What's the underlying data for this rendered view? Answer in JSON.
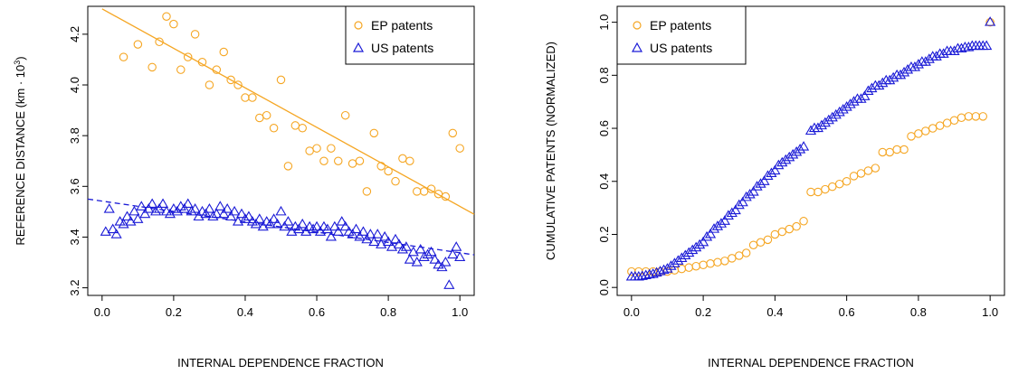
{
  "chart_data": [
    {
      "type": "scatter",
      "title": "",
      "xlabel": "INTERNAL DEPENDENCE FRACTION",
      "ylabel": "REFERENCE DISTANCE (km · 10³)",
      "ylabel_main": "REFERENCE DISTANCE (km · 10",
      "ylabel_exp": "3",
      "ylabel_close": ")",
      "xlim": [
        -0.04,
        1.04
      ],
      "ylim": [
        3.17,
        4.31
      ],
      "xticks": [
        0.0,
        0.2,
        0.4,
        0.6,
        0.8,
        1.0
      ],
      "xtick_labels": [
        "0.0",
        "0.2",
        "0.4",
        "0.6",
        "0.8",
        "1.0"
      ],
      "yticks": [
        3.2,
        3.4,
        3.6,
        3.8,
        4.0,
        4.2
      ],
      "ytick_labels": [
        "3.2",
        "3.4",
        "3.6",
        "3.8",
        "4.0",
        "4.2"
      ],
      "legend_position": "top-right",
      "series": [
        {
          "name": "EP patents",
          "color": "#f5a623",
          "marker": "circle",
          "x": [
            0.06,
            0.1,
            0.14,
            0.16,
            0.18,
            0.2,
            0.22,
            0.24,
            0.26,
            0.28,
            0.3,
            0.32,
            0.34,
            0.36,
            0.38,
            0.4,
            0.42,
            0.44,
            0.46,
            0.48,
            0.5,
            0.52,
            0.54,
            0.56,
            0.58,
            0.6,
            0.62,
            0.64,
            0.66,
            0.68,
            0.7,
            0.72,
            0.74,
            0.76,
            0.78,
            0.8,
            0.82,
            0.84,
            0.86,
            0.88,
            0.9,
            0.92,
            0.94,
            0.96,
            0.98,
            1.0
          ],
          "y": [
            4.11,
            4.16,
            4.07,
            4.17,
            4.27,
            4.24,
            4.06,
            4.11,
            4.2,
            4.09,
            4.0,
            4.06,
            4.13,
            4.02,
            4.0,
            3.95,
            3.95,
            3.87,
            3.88,
            3.83,
            4.02,
            3.68,
            3.84,
            3.83,
            3.74,
            3.75,
            3.7,
            3.75,
            3.7,
            3.88,
            3.69,
            3.7,
            3.58,
            3.81,
            3.68,
            3.66,
            3.62,
            3.71,
            3.7,
            3.58,
            3.58,
            3.59,
            3.57,
            3.56,
            3.81,
            3.75
          ]
        },
        {
          "name": "US patents",
          "color": "#1a1ad6",
          "marker": "triangle",
          "x": [
            0.01,
            0.02,
            0.03,
            0.04,
            0.05,
            0.06,
            0.07,
            0.08,
            0.09,
            0.1,
            0.11,
            0.12,
            0.13,
            0.14,
            0.15,
            0.16,
            0.17,
            0.18,
            0.19,
            0.2,
            0.21,
            0.22,
            0.23,
            0.24,
            0.25,
            0.26,
            0.27,
            0.28,
            0.29,
            0.3,
            0.31,
            0.32,
            0.33,
            0.34,
            0.35,
            0.36,
            0.37,
            0.38,
            0.39,
            0.4,
            0.41,
            0.42,
            0.43,
            0.44,
            0.45,
            0.46,
            0.47,
            0.48,
            0.49,
            0.5,
            0.51,
            0.52,
            0.53,
            0.54,
            0.55,
            0.56,
            0.57,
            0.58,
            0.59,
            0.6,
            0.61,
            0.62,
            0.63,
            0.64,
            0.65,
            0.66,
            0.67,
            0.68,
            0.69,
            0.7,
            0.71,
            0.72,
            0.73,
            0.74,
            0.75,
            0.76,
            0.77,
            0.78,
            0.79,
            0.8,
            0.81,
            0.82,
            0.83,
            0.84,
            0.85,
            0.86,
            0.87,
            0.88,
            0.89,
            0.9,
            0.91,
            0.92,
            0.93,
            0.94,
            0.95,
            0.96,
            0.97,
            0.98,
            0.99,
            1.0
          ],
          "y": [
            3.42,
            3.51,
            3.43,
            3.41,
            3.46,
            3.45,
            3.48,
            3.46,
            3.5,
            3.47,
            3.52,
            3.49,
            3.51,
            3.53,
            3.5,
            3.51,
            3.53,
            3.5,
            3.49,
            3.51,
            3.5,
            3.52,
            3.51,
            3.53,
            3.5,
            3.51,
            3.48,
            3.5,
            3.49,
            3.51,
            3.48,
            3.49,
            3.52,
            3.49,
            3.51,
            3.48,
            3.5,
            3.46,
            3.49,
            3.47,
            3.48,
            3.46,
            3.45,
            3.47,
            3.44,
            3.46,
            3.45,
            3.47,
            3.45,
            3.5,
            3.44,
            3.46,
            3.42,
            3.44,
            3.43,
            3.45,
            3.42,
            3.44,
            3.43,
            3.44,
            3.42,
            3.44,
            3.43,
            3.4,
            3.44,
            3.42,
            3.46,
            3.44,
            3.42,
            3.41,
            3.43,
            3.4,
            3.42,
            3.39,
            3.41,
            3.38,
            3.41,
            3.37,
            3.4,
            3.38,
            3.36,
            3.39,
            3.37,
            3.35,
            3.36,
            3.31,
            3.34,
            3.3,
            3.35,
            3.32,
            3.33,
            3.34,
            3.31,
            3.29,
            3.28,
            3.3,
            3.21,
            3.33,
            3.36,
            3.32
          ]
        }
      ],
      "fit_lines": [
        {
          "series": "EP patents",
          "style": "solid",
          "x": [
            0.0,
            1.04
          ],
          "y": [
            4.3,
            3.49
          ]
        },
        {
          "series": "US patents",
          "style": "dashed",
          "x": [
            -0.04,
            1.04
          ],
          "y": [
            3.55,
            3.33
          ]
        }
      ]
    },
    {
      "type": "scatter",
      "title": "",
      "xlabel": "INTERNAL DEPENDENCE FRACTION",
      "ylabel": "CUMULATIVE PATENTS (NORMALIZED)",
      "xlim": [
        -0.04,
        1.04
      ],
      "ylim": [
        -0.03,
        1.06
      ],
      "xticks": [
        0.0,
        0.2,
        0.4,
        0.6,
        0.8,
        1.0
      ],
      "xtick_labels": [
        "0.0",
        "0.2",
        "0.4",
        "0.6",
        "0.8",
        "1.0"
      ],
      "yticks": [
        0.0,
        0.2,
        0.4,
        0.6,
        0.8,
        1.0
      ],
      "ytick_labels": [
        "0.0",
        "0.2",
        "0.4",
        "0.6",
        "0.8",
        "1.0"
      ],
      "legend_position": "top-left",
      "series": [
        {
          "name": "EP patents",
          "color": "#f5a623",
          "marker": "circle",
          "x": [
            0.0,
            0.02,
            0.04,
            0.06,
            0.08,
            0.1,
            0.12,
            0.14,
            0.16,
            0.18,
            0.2,
            0.22,
            0.24,
            0.26,
            0.28,
            0.3,
            0.32,
            0.34,
            0.36,
            0.38,
            0.4,
            0.42,
            0.44,
            0.46,
            0.48,
            0.5,
            0.52,
            0.54,
            0.56,
            0.58,
            0.6,
            0.62,
            0.64,
            0.66,
            0.68,
            0.7,
            0.72,
            0.74,
            0.76,
            0.78,
            0.8,
            0.82,
            0.84,
            0.86,
            0.88,
            0.9,
            0.92,
            0.94,
            0.96,
            0.98,
            1.0
          ],
          "y": [
            0.06,
            0.06,
            0.06,
            0.06,
            0.06,
            0.06,
            0.065,
            0.07,
            0.075,
            0.08,
            0.085,
            0.09,
            0.095,
            0.1,
            0.11,
            0.12,
            0.13,
            0.16,
            0.17,
            0.18,
            0.2,
            0.21,
            0.22,
            0.23,
            0.25,
            0.36,
            0.36,
            0.37,
            0.38,
            0.39,
            0.4,
            0.42,
            0.43,
            0.44,
            0.45,
            0.51,
            0.51,
            0.52,
            0.52,
            0.57,
            0.58,
            0.59,
            0.6,
            0.61,
            0.62,
            0.63,
            0.64,
            0.645,
            0.645,
            0.645,
            1.0
          ]
        },
        {
          "name": "US patents",
          "color": "#1a1ad6",
          "marker": "triangle",
          "x": [
            0.0,
            0.01,
            0.02,
            0.03,
            0.04,
            0.05,
            0.06,
            0.07,
            0.08,
            0.09,
            0.1,
            0.11,
            0.12,
            0.13,
            0.14,
            0.15,
            0.16,
            0.17,
            0.18,
            0.19,
            0.2,
            0.21,
            0.22,
            0.23,
            0.24,
            0.25,
            0.26,
            0.27,
            0.28,
            0.29,
            0.3,
            0.31,
            0.32,
            0.33,
            0.34,
            0.35,
            0.36,
            0.37,
            0.38,
            0.39,
            0.4,
            0.41,
            0.42,
            0.43,
            0.44,
            0.45,
            0.46,
            0.47,
            0.48,
            0.5,
            0.51,
            0.52,
            0.53,
            0.54,
            0.55,
            0.56,
            0.57,
            0.58,
            0.59,
            0.6,
            0.61,
            0.62,
            0.63,
            0.64,
            0.65,
            0.66,
            0.67,
            0.68,
            0.69,
            0.7,
            0.71,
            0.72,
            0.73,
            0.74,
            0.75,
            0.76,
            0.77,
            0.78,
            0.79,
            0.8,
            0.81,
            0.82,
            0.83,
            0.84,
            0.85,
            0.86,
            0.87,
            0.88,
            0.89,
            0.9,
            0.91,
            0.92,
            0.93,
            0.94,
            0.95,
            0.96,
            0.97,
            0.98,
            0.99,
            1.0
          ],
          "y": [
            0.04,
            0.04,
            0.04,
            0.042,
            0.045,
            0.048,
            0.05,
            0.055,
            0.06,
            0.065,
            0.07,
            0.08,
            0.09,
            0.1,
            0.11,
            0.12,
            0.13,
            0.14,
            0.15,
            0.16,
            0.17,
            0.19,
            0.2,
            0.22,
            0.23,
            0.24,
            0.25,
            0.27,
            0.28,
            0.29,
            0.31,
            0.32,
            0.34,
            0.35,
            0.36,
            0.38,
            0.39,
            0.4,
            0.42,
            0.43,
            0.44,
            0.46,
            0.47,
            0.48,
            0.49,
            0.5,
            0.51,
            0.52,
            0.53,
            0.59,
            0.6,
            0.6,
            0.61,
            0.62,
            0.63,
            0.64,
            0.65,
            0.66,
            0.67,
            0.68,
            0.69,
            0.7,
            0.71,
            0.71,
            0.72,
            0.74,
            0.75,
            0.76,
            0.76,
            0.77,
            0.78,
            0.78,
            0.79,
            0.8,
            0.8,
            0.81,
            0.82,
            0.83,
            0.83,
            0.84,
            0.85,
            0.85,
            0.86,
            0.87,
            0.87,
            0.88,
            0.88,
            0.89,
            0.89,
            0.89,
            0.9,
            0.9,
            0.905,
            0.905,
            0.91,
            0.91,
            0.91,
            0.91,
            0.91,
            1.0
          ]
        }
      ]
    }
  ]
}
